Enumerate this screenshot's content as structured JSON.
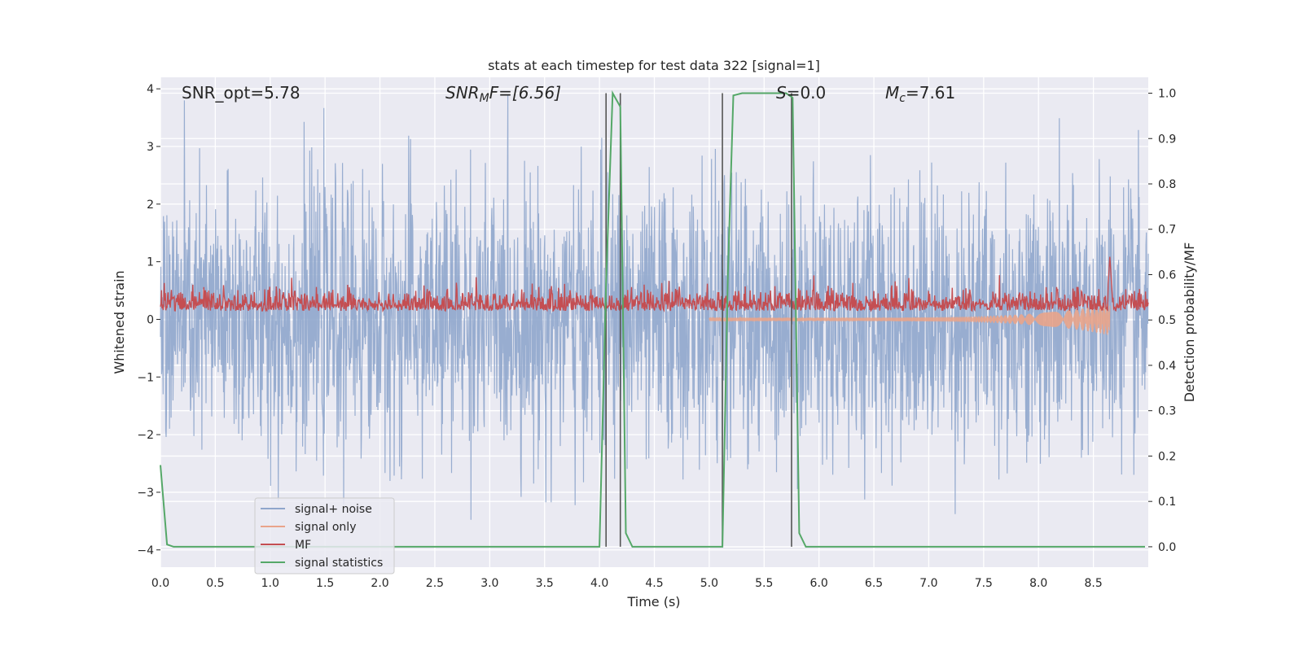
{
  "chart_data": {
    "type": "line",
    "title": "stats at each timestep for test data 322 [signal=1]",
    "xlabel": "Time (s)",
    "ylabel_left": "Whitened strain",
    "ylabel_right": "Detection probability/MF",
    "xlim": [
      0,
      9.0
    ],
    "ylim_left": [
      -4.3,
      4.2
    ],
    "ylim_right": [
      -0.045,
      1.035
    ],
    "x_ticks": [
      "0.0",
      "0.5",
      "1.0",
      "1.5",
      "2.0",
      "2.5",
      "3.0",
      "3.5",
      "4.0",
      "4.5",
      "5.0",
      "5.5",
      "6.0",
      "6.5",
      "7.0",
      "7.5",
      "8.0",
      "8.5"
    ],
    "y_ticks_left": [
      "4",
      "3",
      "2",
      "1",
      "0",
      "−1",
      "−2",
      "−3",
      "−4"
    ],
    "y_ticks_right": [
      "1.0",
      "0.9",
      "0.8",
      "0.7",
      "0.6",
      "0.5",
      "0.4",
      "0.3",
      "0.2",
      "0.1",
      "0.0"
    ],
    "grid": true,
    "legend_position": "lower-left",
    "annotations": {
      "snr_opt": "SNR_opt=5.78",
      "snr_mf_sym": "SNR",
      "snr_mf_sub": "M",
      "snr_mf_rest": "F=[6.56]",
      "s_sym": "S",
      "s_rest": "=0.0",
      "mc_sym": "M",
      "mc_sub": "c",
      "mc_rest": "=7.61"
    },
    "series": [
      {
        "name": "signal+ noise",
        "color": "#8fa6cc",
        "description_range": [
          -4.0,
          3.9
        ]
      },
      {
        "name": "signal only",
        "color": "#e9a48a"
      },
      {
        "name": "MF",
        "color": "#c44e52"
      },
      {
        "name": "signal statistics",
        "color": "#55a868",
        "x": [
          0.0,
          0.06,
          0.12,
          4.0,
          4.06,
          4.12,
          4.19,
          4.24,
          4.3,
          5.12,
          5.17,
          5.22,
          5.3,
          5.7,
          5.76,
          5.82,
          5.88,
          8.97
        ],
        "y": [
          0.18,
          0.005,
          0.0,
          0.0,
          0.58,
          1.0,
          0.97,
          0.03,
          0.0,
          0.0,
          0.6,
          0.995,
          1.0,
          1.0,
          0.99,
          0.03,
          0.0,
          0.0
        ]
      }
    ],
    "vertical_lines_x": [
      4.06,
      4.19,
      5.12,
      5.75
    ],
    "colors": {
      "plot_bg": "#eaeaf2",
      "grid": "#ffffff",
      "vline": "#555555"
    }
  }
}
